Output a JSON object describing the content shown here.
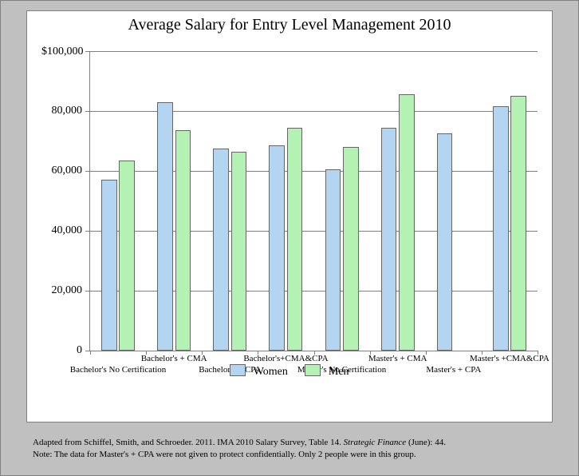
{
  "chart": {
    "type": "bar",
    "title": "Average Salary for Entry Level Management  2010",
    "title_fontsize": 20,
    "background_color": "#c0c0c0",
    "plot_bg": "#ffffff",
    "grid_color": "#808080",
    "axis_color": "#808080",
    "y": {
      "min": 0,
      "max": 100000,
      "tick_step": 20000,
      "ticks": [
        0,
        20000,
        40000,
        60000,
        80000,
        100000
      ],
      "tick_labels": [
        "0",
        "20,000",
        "40,000",
        "60,000",
        "80,000"
      ],
      "max_label": "$100,000",
      "label_fontsize": 14
    },
    "categories": [
      "Bachelor's No Certification",
      "Bachelor's + CMA",
      "Bachelor's + CPA",
      "Bachelor's+CMA&CPA",
      "Master's No Certification",
      "Master's + CMA",
      "Master's + CPA",
      "Master's +CMA&CPA"
    ],
    "category_label_rows": [
      1,
      0,
      1,
      0,
      1,
      0,
      1,
      0
    ],
    "category_label_fontsize": 11,
    "series": [
      {
        "name": "Women",
        "color": "#b3d5f2"
      },
      {
        "name": "Men",
        "color": "#b3f2b3"
      }
    ],
    "values": {
      "Women": [
        57000,
        83000,
        67500,
        68500,
        60500,
        74500,
        72500,
        81500
      ],
      "Men": [
        63500,
        73500,
        66500,
        74500,
        68000,
        85500,
        null,
        85000
      ]
    },
    "bar_border_color": "#666666",
    "legend": {
      "fontsize": 14,
      "items": [
        "Women",
        "Men"
      ]
    }
  },
  "footnotes": {
    "line1_prefix": "Adapted from Schiffel, Smith, and Schroeder. 2011. IMA 2010 Salary Survey, Table 14.  ",
    "line1_italic": "Strategic Finance ",
    "line1_suffix": "(June): 44.",
    "line2": "Note: The data for Master's + CPA were not given to protect confidentially. Only 2 people were in this group."
  }
}
